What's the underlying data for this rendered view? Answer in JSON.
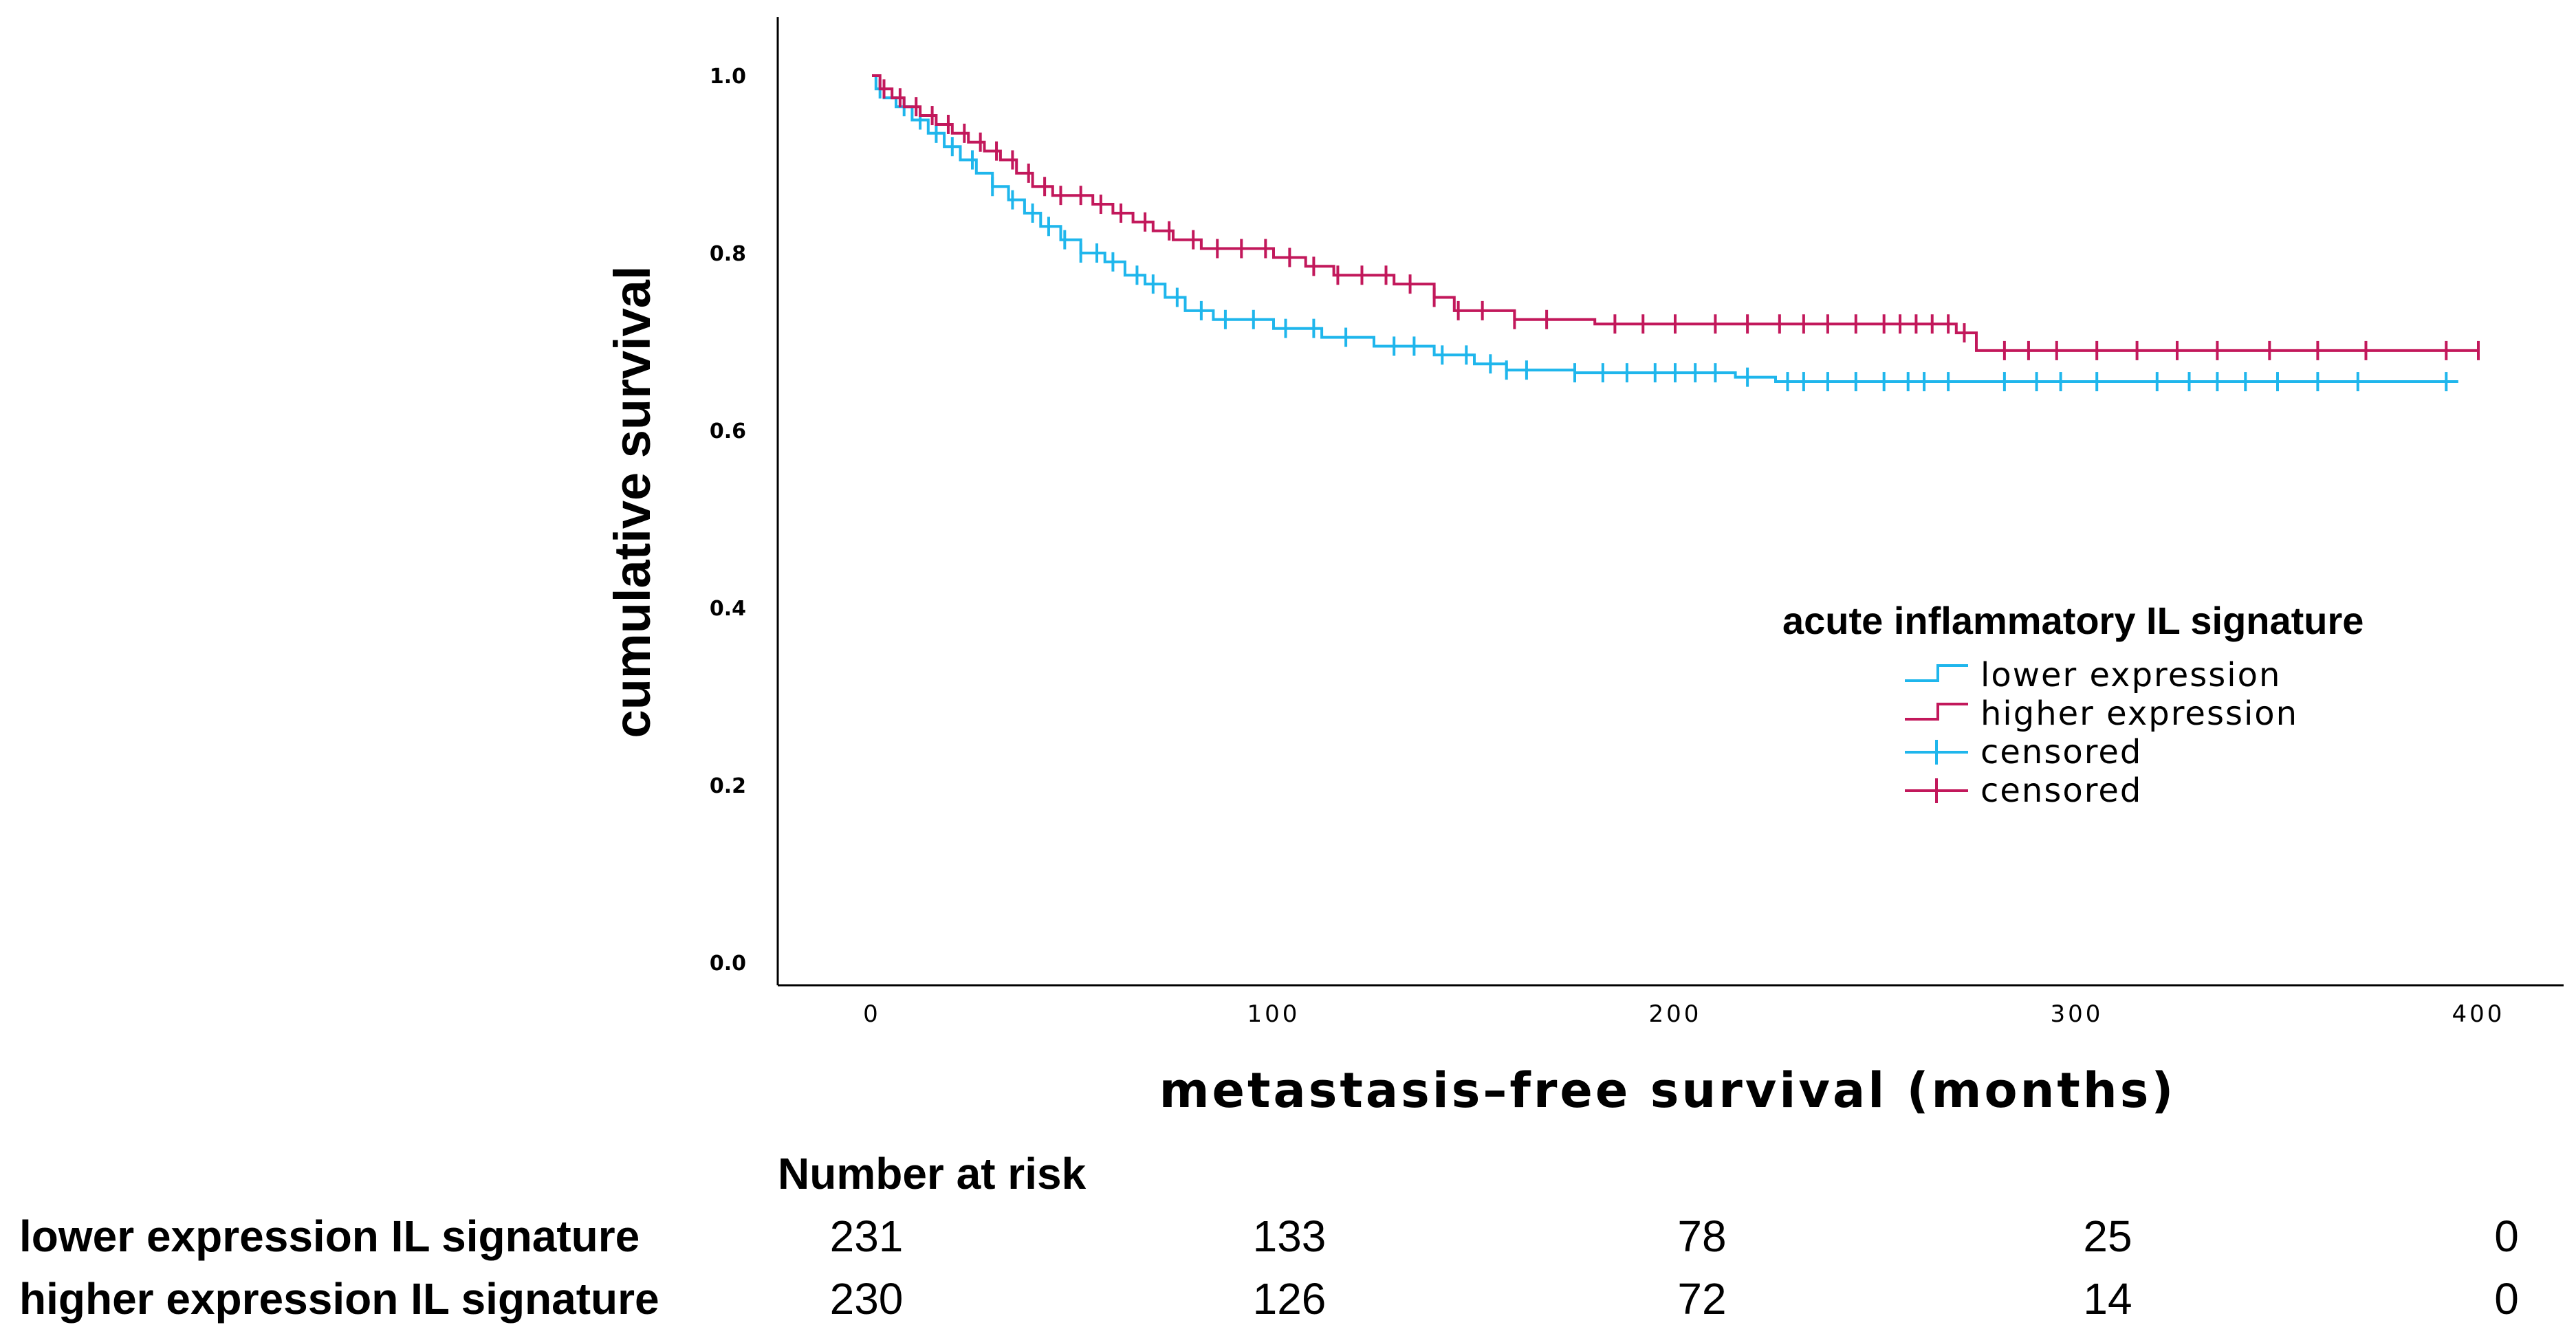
{
  "chart_data": {
    "type": "line",
    "subtype": "kaplan-meier",
    "title": "",
    "xlabel": "metastasis–free survival (months)",
    "ylabel": "cumulative survival",
    "xlim": [
      -20,
      420
    ],
    "ylim": [
      0.0,
      1.05
    ],
    "x_ticks": [
      0,
      100,
      200,
      300,
      400
    ],
    "x_tick_labels": [
      "0",
      "100",
      "200",
      "300",
      "400"
    ],
    "y_ticks": [
      0.0,
      0.2,
      0.4,
      0.6,
      0.8,
      1.0
    ],
    "y_tick_labels": [
      "0.0",
      "0.2",
      "0.4",
      "0.6",
      "0.8",
      "1.0"
    ],
    "grid": false,
    "legend": {
      "title": "acute inflammatory IL signature",
      "placement": "right",
      "entries": [
        {
          "label": "lower expression",
          "kind": "line",
          "series": 0
        },
        {
          "label": "higher expression",
          "kind": "line",
          "series": 1
        },
        {
          "label": "censored",
          "kind": "censor",
          "series": 0
        },
        {
          "label": "censored",
          "kind": "censor",
          "series": 1
        }
      ]
    },
    "series": [
      {
        "name": "lower expression",
        "color": "#1fb6ec",
        "steps": [
          [
            0,
            1.0
          ],
          [
            1,
            0.985
          ],
          [
            3,
            0.975
          ],
          [
            6,
            0.965
          ],
          [
            10,
            0.95
          ],
          [
            14,
            0.935
          ],
          [
            18,
            0.92
          ],
          [
            22,
            0.905
          ],
          [
            26,
            0.89
          ],
          [
            30,
            0.875
          ],
          [
            34,
            0.86
          ],
          [
            38,
            0.845
          ],
          [
            42,
            0.83
          ],
          [
            47,
            0.815
          ],
          [
            52,
            0.8
          ],
          [
            58,
            0.79
          ],
          [
            63,
            0.775
          ],
          [
            68,
            0.765
          ],
          [
            73,
            0.75
          ],
          [
            78,
            0.735
          ],
          [
            85,
            0.725
          ],
          [
            100,
            0.715
          ],
          [
            112,
            0.705
          ],
          [
            125,
            0.695
          ],
          [
            140,
            0.685
          ],
          [
            150,
            0.675
          ],
          [
            158,
            0.668
          ],
          [
            175,
            0.665
          ],
          [
            215,
            0.66
          ],
          [
            225,
            0.655
          ],
          [
            395,
            0.655
          ]
        ],
        "censored": [
          2,
          8,
          12,
          16,
          20,
          25,
          30,
          35,
          40,
          44,
          48,
          52,
          56,
          60,
          66,
          70,
          76,
          82,
          88,
          95,
          103,
          110,
          118,
          130,
          135,
          142,
          148,
          154,
          158,
          163,
          175,
          182,
          188,
          195,
          200,
          205,
          210,
          218,
          228,
          232,
          238,
          245,
          252,
          258,
          262,
          268,
          282,
          290,
          296,
          305,
          320,
          328,
          335,
          342,
          350,
          360,
          370,
          392
        ]
      },
      {
        "name": "higher expression",
        "color": "#c2185b",
        "steps": [
          [
            0,
            1.0
          ],
          [
            2,
            0.985
          ],
          [
            5,
            0.975
          ],
          [
            8,
            0.965
          ],
          [
            12,
            0.955
          ],
          [
            16,
            0.945
          ],
          [
            20,
            0.935
          ],
          [
            24,
            0.925
          ],
          [
            28,
            0.915
          ],
          [
            32,
            0.905
          ],
          [
            36,
            0.89
          ],
          [
            40,
            0.875
          ],
          [
            45,
            0.865
          ],
          [
            55,
            0.855
          ],
          [
            60,
            0.845
          ],
          [
            65,
            0.835
          ],
          [
            70,
            0.825
          ],
          [
            75,
            0.815
          ],
          [
            82,
            0.805
          ],
          [
            100,
            0.795
          ],
          [
            108,
            0.785
          ],
          [
            115,
            0.775
          ],
          [
            130,
            0.765
          ],
          [
            140,
            0.75
          ],
          [
            145,
            0.735
          ],
          [
            160,
            0.725
          ],
          [
            180,
            0.72
          ],
          [
            270,
            0.71
          ],
          [
            275,
            0.69
          ],
          [
            400,
            0.69
          ]
        ],
        "censored": [
          3,
          7,
          11,
          15,
          19,
          23,
          27,
          31,
          35,
          39,
          43,
          47,
          52,
          57,
          62,
          68,
          74,
          80,
          86,
          92,
          98,
          104,
          110,
          116,
          122,
          128,
          134,
          140,
          146,
          152,
          160,
          168,
          185,
          192,
          200,
          210,
          218,
          226,
          232,
          238,
          245,
          252,
          256,
          260,
          264,
          268,
          272,
          282,
          288,
          295,
          305,
          315,
          325,
          335,
          348,
          360,
          372,
          392,
          400
        ]
      }
    ],
    "risk_table": {
      "title": "Number at risk",
      "times": [
        0,
        100,
        200,
        300,
        400
      ],
      "rows": [
        {
          "label": "lower expression IL signature",
          "values": [
            "231",
            "133",
            "78",
            "25",
            "0"
          ]
        },
        {
          "label": "higher expression IL signature",
          "values": [
            "230",
            "126",
            "72",
            "14",
            "0"
          ]
        }
      ]
    }
  }
}
